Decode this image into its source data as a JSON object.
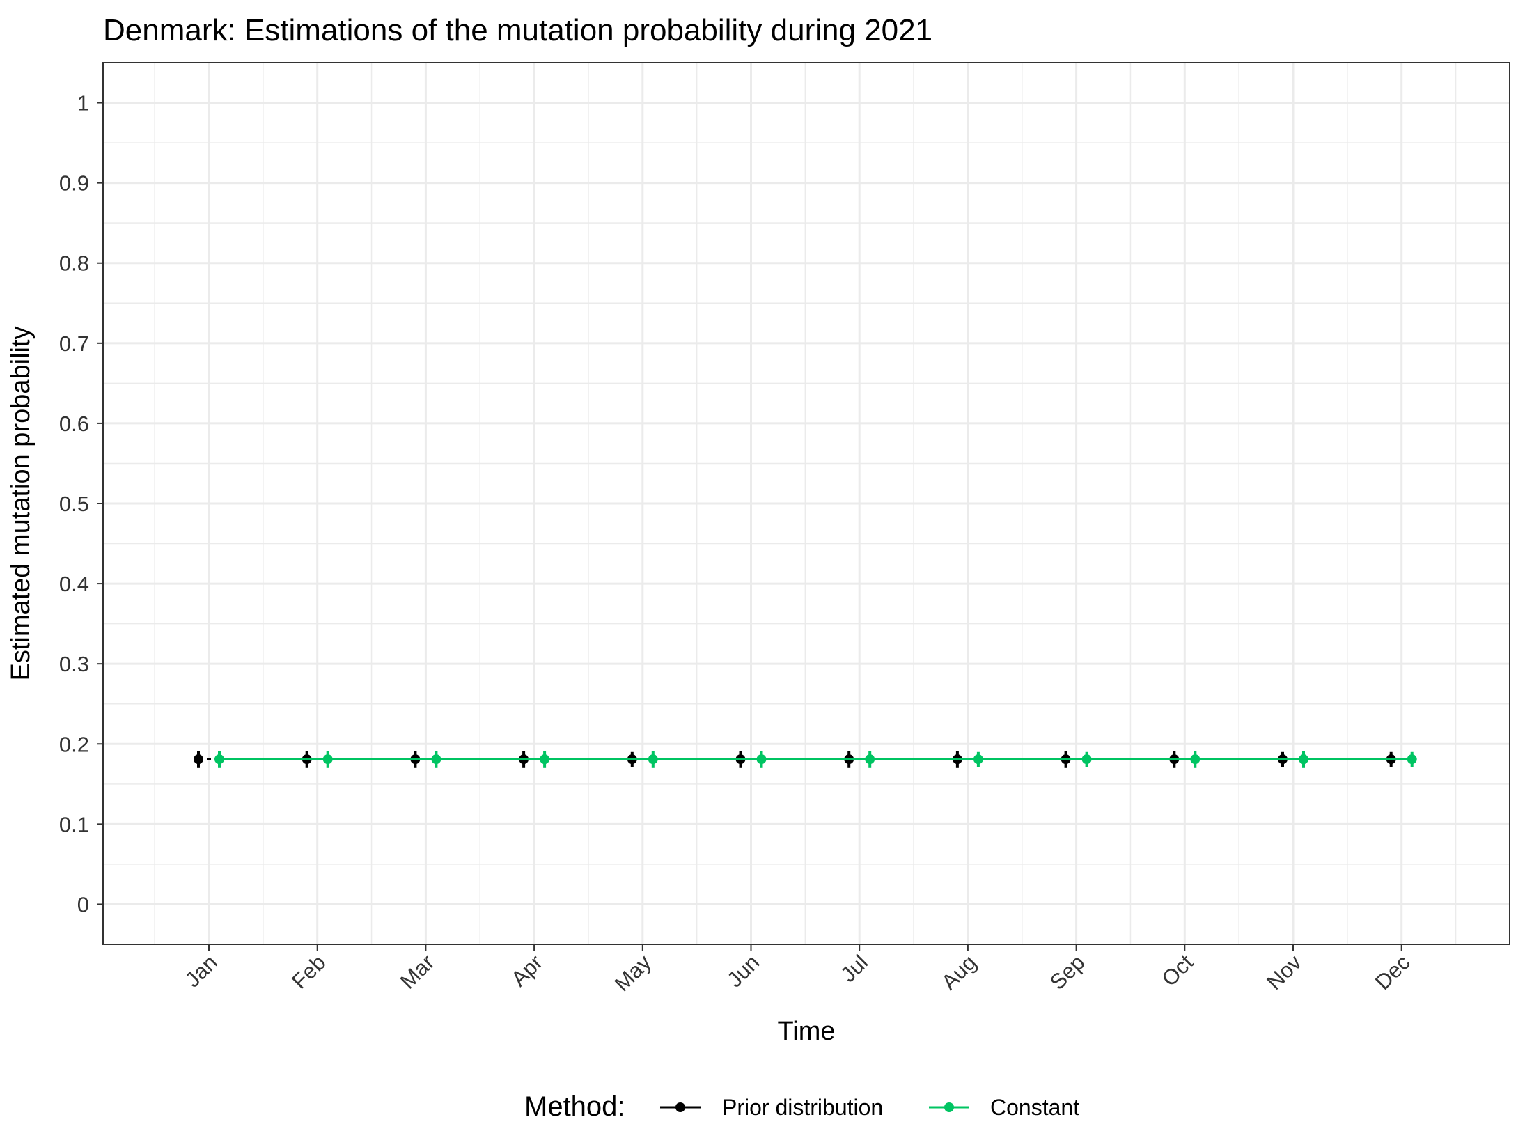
{
  "chart_data": {
    "type": "line",
    "title": "Denmark: Estimations of the mutation probability during 2021",
    "xlabel": "Time",
    "ylabel": "Estimated mutation probability",
    "categories": [
      "Jan",
      "Feb",
      "Mar",
      "Apr",
      "May",
      "Jun",
      "Jul",
      "Aug",
      "Sep",
      "Oct",
      "Nov",
      "Dec"
    ],
    "yticks": [
      0,
      0.1,
      0.2,
      0.3,
      0.4,
      0.5,
      0.6,
      0.7,
      0.8,
      0.9,
      1
    ],
    "ytick_labels": [
      "0",
      "0.1",
      "0.2",
      "0.3",
      "0.4",
      "0.5",
      "0.6",
      "0.7",
      "0.8",
      "0.9",
      "1"
    ],
    "ylim": [
      -0.05,
      1.05
    ],
    "grid": true,
    "legend": {
      "title": "Method:",
      "position": "bottom"
    },
    "series": [
      {
        "name": "Prior distribution",
        "color": "#000000",
        "values": [
          0.181,
          0.181,
          0.181,
          0.181,
          0.181,
          0.181,
          0.181,
          0.181,
          0.181,
          0.181,
          0.181,
          0.181
        ],
        "lower": [
          0.17,
          0.17,
          0.17,
          0.17,
          0.171,
          0.17,
          0.17,
          0.17,
          0.17,
          0.17,
          0.171,
          0.171
        ],
        "upper": [
          0.191,
          0.191,
          0.191,
          0.191,
          0.19,
          0.191,
          0.191,
          0.191,
          0.191,
          0.191,
          0.19,
          0.19
        ]
      },
      {
        "name": "Constant",
        "color": "#00C462",
        "values": [
          0.181,
          0.181,
          0.181,
          0.181,
          0.181,
          0.181,
          0.181,
          0.181,
          0.181,
          0.181,
          0.181,
          0.181
        ],
        "lower": [
          0.17,
          0.17,
          0.17,
          0.17,
          0.17,
          0.17,
          0.17,
          0.171,
          0.171,
          0.17,
          0.17,
          0.171
        ],
        "upper": [
          0.191,
          0.191,
          0.191,
          0.191,
          0.191,
          0.191,
          0.191,
          0.19,
          0.19,
          0.191,
          0.191,
          0.19
        ]
      }
    ]
  }
}
